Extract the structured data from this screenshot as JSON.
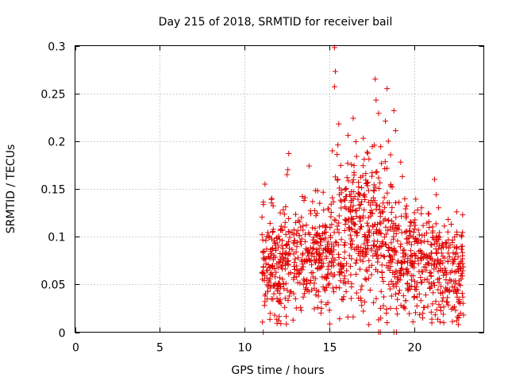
{
  "chart_data": {
    "type": "scatter",
    "title": "Day 215 of 2018, SRMTID for receiver bail",
    "xlabel": "GPS time / hours",
    "ylabel": "SRMTID / TECUs",
    "xlim": [
      0,
      24.1
    ],
    "ylim": [
      0,
      0.3
    ],
    "xticks": [
      "0",
      "5",
      "10",
      "15",
      "20"
    ],
    "xtick_values": [
      0,
      5,
      10,
      15,
      20
    ],
    "yticks": [
      "0",
      "0.05",
      "0.1",
      "0.15",
      "0.2",
      "0.25",
      "0.3"
    ],
    "ytick_values": [
      0,
      0.05,
      0.1,
      0.15,
      0.2,
      0.25,
      0.3
    ],
    "grid": true,
    "marker": "+",
    "color": "#e00000",
    "series": [
      {
        "name": "SRMTID",
        "points": [
          [
            11.1,
            0.0
          ],
          [
            17.9,
            0.0
          ],
          [
            18.0,
            0.0
          ],
          [
            18.8,
            0.0
          ],
          [
            18.95,
            0.0
          ],
          [
            15.3,
            0.298
          ],
          [
            15.35,
            0.273
          ],
          [
            15.3,
            0.257
          ],
          [
            17.7,
            0.265
          ],
          [
            18.4,
            0.255
          ],
          [
            17.75,
            0.243
          ],
          [
            18.8,
            0.232
          ],
          [
            17.9,
            0.229
          ],
          [
            16.4,
            0.224
          ],
          [
            18.3,
            0.221
          ],
          [
            15.55,
            0.218
          ],
          [
            18.9,
            0.211
          ],
          [
            16.1,
            0.206
          ],
          [
            17.0,
            0.203
          ],
          [
            15.5,
            0.196
          ],
          [
            12.6,
            0.187
          ],
          [
            15.45,
            0.186
          ],
          [
            16.6,
            0.184
          ],
          [
            17.05,
            0.181
          ],
          [
            19.2,
            0.178
          ],
          [
            13.8,
            0.174
          ],
          [
            12.55,
            0.17
          ],
          [
            17.8,
            0.168
          ],
          [
            12.5,
            0.165
          ],
          [
            19.3,
            0.163
          ],
          [
            21.2,
            0.16
          ],
          [
            11.2,
            0.155
          ],
          [
            18.7,
            0.152
          ],
          [
            14.3,
            0.148
          ],
          [
            15.7,
            0.146
          ],
          [
            21.3,
            0.144
          ],
          [
            16.5,
            0.142
          ],
          [
            11.6,
            0.14
          ],
          [
            13.5,
            0.138
          ],
          [
            19.1,
            0.136
          ],
          [
            15.1,
            0.134
          ],
          [
            22.5,
            0.126
          ],
          [
            20.2,
            0.128
          ],
          [
            12.1,
            0.125
          ],
          [
            14.2,
            0.122
          ],
          [
            17.3,
            0.12
          ],
          [
            22.0,
            0.118
          ],
          [
            11.5,
            0.114
          ],
          [
            18.9,
            0.112
          ],
          [
            13.3,
            0.11
          ],
          [
            16.2,
            0.108
          ],
          [
            21.1,
            0.106
          ],
          [
            12.8,
            0.104
          ],
          [
            14.6,
            0.103
          ],
          [
            19.8,
            0.101
          ],
          [
            22.8,
            0.1
          ],
          [
            11.9,
            0.099
          ],
          [
            15.7,
            0.097
          ],
          [
            17.2,
            0.096
          ],
          [
            20.6,
            0.095
          ],
          [
            13.1,
            0.094
          ],
          [
            18.3,
            0.092
          ],
          [
            12.2,
            0.091
          ],
          [
            14.9,
            0.09
          ],
          [
            16.7,
            0.089
          ],
          [
            21.6,
            0.088
          ],
          [
            11.3,
            0.087
          ],
          [
            19.4,
            0.086
          ],
          [
            13.7,
            0.085
          ],
          [
            15.9,
            0.084
          ],
          [
            22.3,
            0.083
          ],
          [
            12.9,
            0.082
          ],
          [
            17.8,
            0.081
          ],
          [
            20.1,
            0.08
          ],
          [
            14.1,
            0.079
          ],
          [
            11.7,
            0.078
          ],
          [
            16.3,
            0.077
          ],
          [
            18.7,
            0.076
          ],
          [
            21.4,
            0.075
          ],
          [
            13.4,
            0.074
          ],
          [
            15.2,
            0.073
          ],
          [
            19.9,
            0.072
          ],
          [
            12.4,
            0.071
          ],
          [
            17.5,
            0.07
          ],
          [
            22.6,
            0.069
          ],
          [
            11.1,
            0.068
          ],
          [
            14.4,
            0.067
          ],
          [
            16.8,
            0.066
          ],
          [
            20.7,
            0.065
          ],
          [
            13.2,
            0.064
          ],
          [
            18.1,
            0.063
          ],
          [
            21.9,
            0.062
          ],
          [
            12.6,
            0.061
          ],
          [
            15.6,
            0.06
          ],
          [
            19.2,
            0.059
          ],
          [
            11.8,
            0.058
          ],
          [
            14.7,
            0.057
          ],
          [
            17.1,
            0.056
          ],
          [
            22.1,
            0.055
          ],
          [
            13.9,
            0.054
          ],
          [
            16.1,
            0.053
          ],
          [
            20.4,
            0.052
          ],
          [
            12.3,
            0.051
          ],
          [
            18.5,
            0.05
          ],
          [
            21.2,
            0.049
          ],
          [
            11.4,
            0.048
          ],
          [
            15.4,
            0.047
          ],
          [
            19.6,
            0.046
          ],
          [
            13.6,
            0.045
          ],
          [
            17.4,
            0.044
          ],
          [
            22.4,
            0.043
          ],
          [
            12.7,
            0.042
          ],
          [
            16.6,
            0.041
          ],
          [
            20.3,
            0.04
          ],
          [
            14.2,
            0.039
          ],
          [
            11.2,
            0.038
          ],
          [
            18.2,
            0.037
          ],
          [
            21.7,
            0.036
          ],
          [
            13.0,
            0.035
          ],
          [
            15.8,
            0.034
          ],
          [
            19.5,
            0.033
          ],
          [
            12.0,
            0.032
          ],
          [
            17.6,
            0.031
          ],
          [
            22.7,
            0.03
          ],
          [
            14.8,
            0.029
          ],
          [
            16.9,
            0.028
          ],
          [
            20.8,
            0.027
          ],
          [
            13.3,
            0.026
          ],
          [
            18.6,
            0.025
          ],
          [
            22.2,
            0.024
          ],
          [
            15.0,
            0.023
          ],
          [
            17.0,
            0.022
          ],
          [
            21.0,
            0.021
          ],
          [
            14.5,
            0.02
          ],
          [
            19.0,
            0.019
          ],
          [
            22.9,
            0.018
          ],
          [
            16.4,
            0.016
          ],
          [
            20.5,
            0.015
          ],
          [
            15.6,
            0.014
          ],
          [
            17.9,
            0.013
          ],
          [
            22.5,
            0.012
          ],
          [
            18.4,
            0.01
          ],
          [
            22.6,
            0.008
          ]
        ],
        "generated_cloud": {
          "note": "dense region reproduced procedurally with deterministic noise",
          "x_range": [
            11.0,
            22.9
          ],
          "count": 1150,
          "seed": 215
        }
      }
    ]
  }
}
